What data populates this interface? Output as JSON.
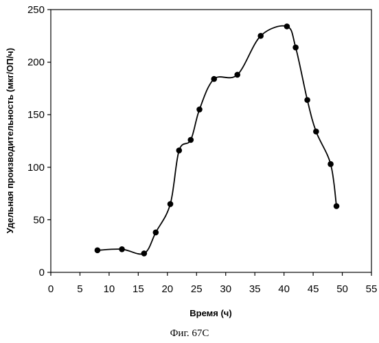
{
  "chart_data": {
    "type": "line",
    "xlabel": "Время (ч)",
    "ylabel": "Удельная производительность (мкг/ОП/ч)",
    "xlim": [
      0,
      55
    ],
    "ylim": [
      0,
      250
    ],
    "xticks": [
      0,
      5,
      10,
      15,
      20,
      25,
      30,
      35,
      40,
      45,
      50,
      55
    ],
    "yticks": [
      0,
      50,
      100,
      150,
      200,
      250
    ],
    "grid": false,
    "legend": "none",
    "series": [
      {
        "x": [
          8,
          12.2,
          16,
          18,
          20.5,
          22,
          24,
          25.5,
          28,
          32,
          36,
          40.5,
          42,
          44,
          45.5,
          48,
          49
        ],
        "y": [
          21,
          22,
          18,
          38,
          65,
          116,
          126,
          155,
          184,
          188,
          225,
          234,
          214,
          164,
          134,
          103,
          63
        ]
      }
    ]
  },
  "caption": "Фиг. 67С"
}
